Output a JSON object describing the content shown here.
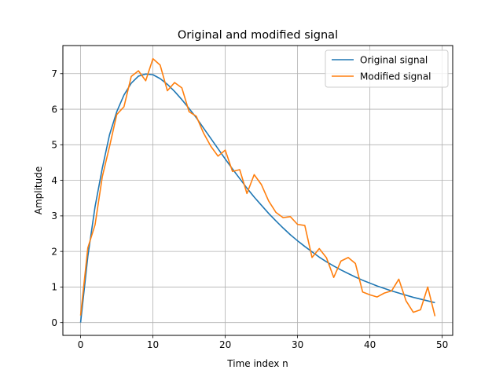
{
  "chart_data": {
    "type": "line",
    "title": "Original and modified signal",
    "xlabel": "Time index n",
    "ylabel": "Amplitude",
    "xlim": [
      -2.45,
      51.45
    ],
    "ylim": [
      -0.36,
      7.79
    ],
    "x_ticks": [
      0,
      10,
      20,
      30,
      40,
      50
    ],
    "y_ticks": [
      0,
      1,
      2,
      3,
      4,
      5,
      6,
      7
    ],
    "grid": true,
    "legend_position": "top-right",
    "x": [
      0,
      1,
      2,
      3,
      4,
      5,
      6,
      7,
      8,
      9,
      10,
      11,
      12,
      13,
      14,
      15,
      16,
      17,
      18,
      19,
      20,
      21,
      22,
      23,
      24,
      25,
      26,
      27,
      28,
      29,
      30,
      31,
      32,
      33,
      34,
      35,
      36,
      37,
      38,
      39,
      40,
      41,
      42,
      43,
      44,
      45,
      46,
      47,
      48,
      49
    ],
    "series": [
      {
        "name": "Original signal",
        "color": "#1f77b4",
        "values": [
          0.0,
          1.86,
          3.26,
          4.34,
          5.28,
          5.93,
          6.4,
          6.73,
          6.93,
          6.99,
          6.97,
          6.86,
          6.7,
          6.5,
          6.27,
          6.02,
          5.76,
          5.47,
          5.18,
          4.89,
          4.6,
          4.32,
          4.05,
          3.78,
          3.53,
          3.3,
          3.07,
          2.86,
          2.66,
          2.47,
          2.3,
          2.14,
          1.99,
          1.84,
          1.71,
          1.59,
          1.48,
          1.38,
          1.28,
          1.19,
          1.11,
          1.03,
          0.96,
          0.89,
          0.83,
          0.77,
          0.71,
          0.66,
          0.61,
          0.56
        ]
      },
      {
        "name": "Modified signal",
        "color": "#ff7f0e",
        "values": [
          0.2,
          2.1,
          2.75,
          4.1,
          4.95,
          5.85,
          6.07,
          6.92,
          7.08,
          6.8,
          7.42,
          7.24,
          6.52,
          6.75,
          6.6,
          5.93,
          5.8,
          5.33,
          4.96,
          4.68,
          4.85,
          4.25,
          4.3,
          3.63,
          4.16,
          3.88,
          3.42,
          3.1,
          2.95,
          2.98,
          2.76,
          2.73,
          1.83,
          2.08,
          1.82,
          1.27,
          1.73,
          1.83,
          1.66,
          0.86,
          0.78,
          0.72,
          0.83,
          0.89,
          1.22,
          0.61,
          0.29,
          0.36,
          1.0,
          0.18
        ]
      }
    ]
  }
}
